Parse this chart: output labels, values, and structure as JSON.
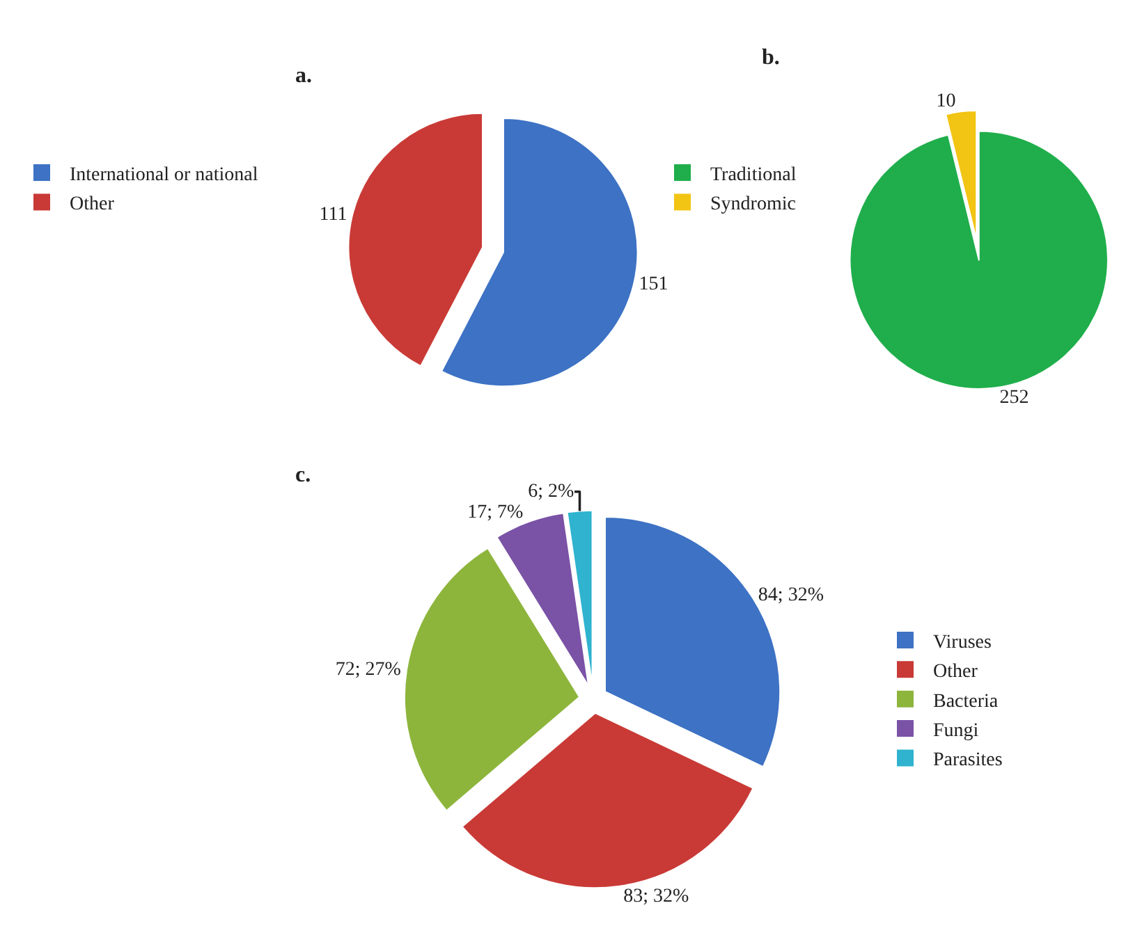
{
  "chart_data": [
    {
      "type": "pie",
      "title": "a.",
      "categories": [
        "International or national",
        "Other"
      ],
      "values": [
        151,
        111
      ],
      "colors": [
        "#3d72c4",
        "#c93a36"
      ],
      "data_labels": true,
      "legend": "left"
    },
    {
      "type": "pie",
      "title": "b.",
      "categories": [
        "Traditional",
        "Syndromic"
      ],
      "values": [
        252,
        10
      ],
      "colors": [
        "#1fae4b",
        "#f2c413"
      ],
      "data_labels": true,
      "legend": "left"
    },
    {
      "type": "pie",
      "title": "c.",
      "categories": [
        "Viruses",
        "Other",
        "Bacteria",
        "Fungi",
        "Parasites"
      ],
      "values": [
        84,
        83,
        72,
        17,
        6
      ],
      "colors": [
        "#3d72c4",
        "#c93a36",
        "#8db53c",
        "#7a52a6",
        "#2fb3cf"
      ],
      "value_labels": [
        "84; 32%",
        "83; 32%",
        "72; 27%",
        "17; 7%",
        "6; 2%"
      ],
      "legend": "right"
    }
  ]
}
